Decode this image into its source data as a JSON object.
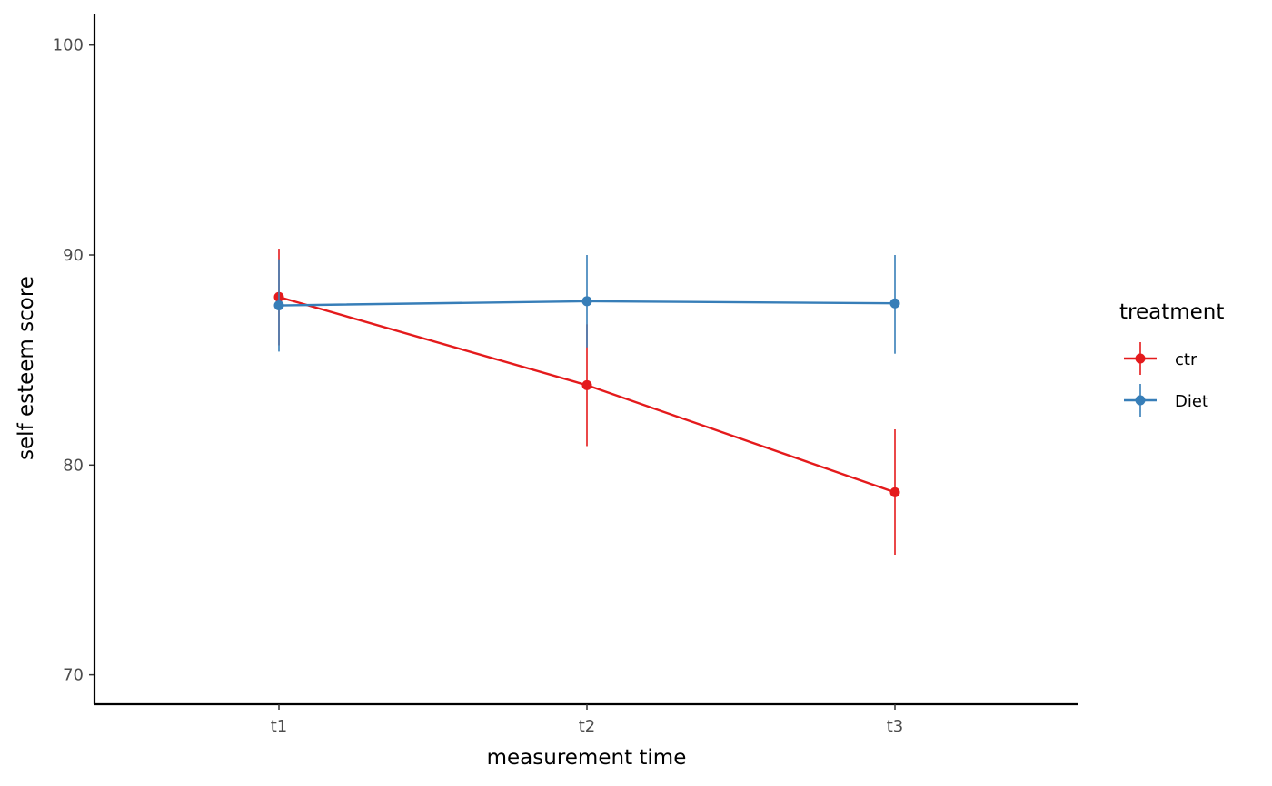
{
  "chart_data": {
    "type": "line",
    "title": "",
    "xlabel": "measurement time",
    "ylabel": "self esteem score",
    "categories": [
      "t1",
      "t2",
      "t3"
    ],
    "ylim": [
      68.6,
      101.5
    ],
    "yticks": [
      70,
      80,
      90,
      100
    ],
    "grid": false,
    "legend": {
      "title": "treatment",
      "placement": "right"
    },
    "series": [
      {
        "name": "ctr",
        "color": "#E41A1C",
        "values": [
          88.0,
          83.8,
          78.7
        ],
        "error_low": [
          85.7,
          80.9,
          75.7
        ],
        "error_high": [
          90.3,
          86.7,
          81.7
        ]
      },
      {
        "name": "Diet",
        "color": "#377EB8",
        "values": [
          87.6,
          87.8,
          87.7
        ],
        "error_low": [
          85.4,
          85.6,
          85.3
        ],
        "error_high": [
          89.8,
          90.0,
          90.0
        ]
      }
    ]
  }
}
